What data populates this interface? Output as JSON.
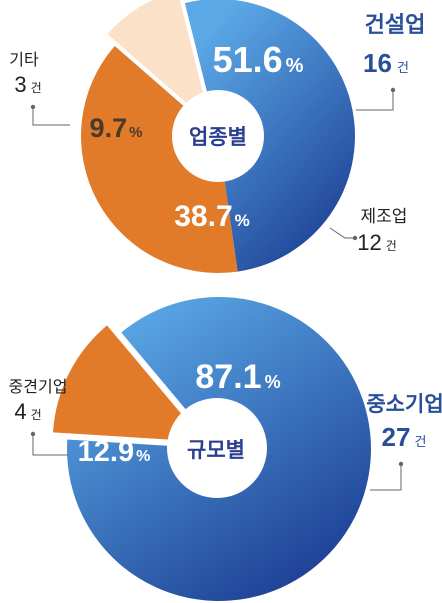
{
  "chart_data": [
    {
      "type": "pie",
      "center_label": "업종별",
      "slices": [
        {
          "label": "건설업",
          "count": 16,
          "unit": "건",
          "percent": 51.6,
          "percent_text": "51.6",
          "color": "#2f6fc4",
          "label_color": "#2a4f9a"
        },
        {
          "label": "제조업",
          "count": 12,
          "unit": "건",
          "percent": 38.7,
          "percent_text": "38.7",
          "color": "#e17b2a",
          "label_color": "#222222"
        },
        {
          "label": "기타",
          "count": 3,
          "unit": "건",
          "percent": 9.7,
          "percent_text": "9.7",
          "color": "#fbe1c8",
          "label_color": "#222222",
          "value_color": "#4a3a2a"
        }
      ],
      "percent_sign": "%"
    },
    {
      "type": "pie",
      "center_label": "규모별",
      "slices": [
        {
          "label": "중소기업",
          "count": 27,
          "unit": "건",
          "percent": 87.1,
          "percent_text": "87.1",
          "color": "#2f6fc4",
          "label_color": "#2a4f9a"
        },
        {
          "label": "중견기업",
          "count": 4,
          "unit": "건",
          "percent": 12.9,
          "percent_text": "12.9",
          "color": "#e17b2a",
          "label_color": "#222222"
        }
      ],
      "percent_sign": "%"
    }
  ],
  "colors": {
    "blue_light": "#5aa8e6",
    "blue_dark": "#1d3f94",
    "orange": "#e17b2a",
    "beige": "#fbe1c8",
    "center_text": "#2a3f8f",
    "leader": "#666666"
  }
}
